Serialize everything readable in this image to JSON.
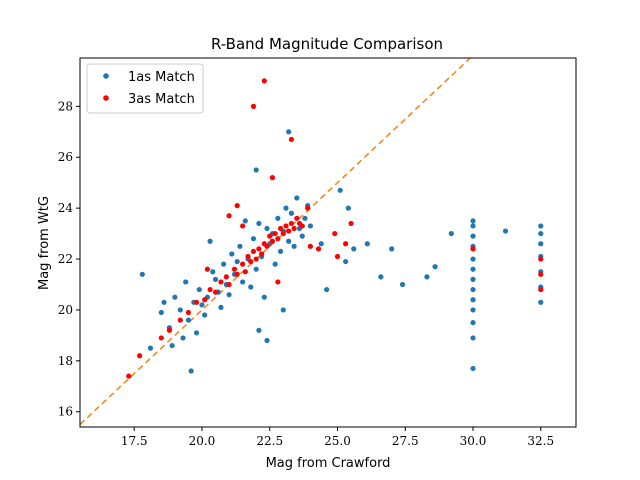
{
  "chart_data": {
    "type": "scatter",
    "title": "R-Band Magnitude Comparison",
    "xlabel": "Mag from Crawford",
    "ylabel": "Mag from WtG",
    "xlim": [
      15.5,
      33.8
    ],
    "ylim": [
      15.4,
      29.9
    ],
    "xticks": [
      "17.5",
      "20.0",
      "22.5",
      "25.0",
      "27.5",
      "30.0",
      "32.5"
    ],
    "yticks": [
      "16",
      "18",
      "20",
      "22",
      "24",
      "26",
      "28"
    ],
    "grid": false,
    "legend_position": "top-left",
    "reference_line": {
      "style": "dashed",
      "color": "#ff7f0e",
      "slope": 1,
      "intercept": 0
    },
    "series": [
      {
        "name": "1as Match",
        "color": "#1f77b4",
        "points": [
          [
            17.8,
            21.4
          ],
          [
            18.1,
            18.5
          ],
          [
            18.5,
            19.9
          ],
          [
            18.6,
            20.3
          ],
          [
            18.8,
            19.3
          ],
          [
            18.9,
            18.6
          ],
          [
            19.0,
            20.5
          ],
          [
            19.2,
            20.0
          ],
          [
            19.3,
            18.9
          ],
          [
            19.4,
            21.1
          ],
          [
            19.5,
            19.6
          ],
          [
            19.6,
            17.6
          ],
          [
            19.7,
            20.3
          ],
          [
            19.8,
            19.1
          ],
          [
            19.9,
            20.8
          ],
          [
            20.0,
            20.2
          ],
          [
            20.1,
            19.8
          ],
          [
            20.2,
            20.5
          ],
          [
            20.3,
            22.7
          ],
          [
            20.4,
            21.5
          ],
          [
            20.5,
            21.2
          ],
          [
            20.6,
            20.7
          ],
          [
            20.7,
            20.1
          ],
          [
            20.8,
            21.8
          ],
          [
            20.9,
            21.0
          ],
          [
            21.0,
            20.6
          ],
          [
            21.1,
            22.2
          ],
          [
            21.2,
            21.4
          ],
          [
            21.3,
            21.9
          ],
          [
            21.4,
            22.5
          ],
          [
            21.5,
            21.1
          ],
          [
            21.6,
            23.5
          ],
          [
            21.7,
            22.0
          ],
          [
            21.8,
            20.9
          ],
          [
            21.9,
            22.8
          ],
          [
            22.0,
            21.6
          ],
          [
            22.1,
            23.4
          ],
          [
            22.2,
            22.1
          ],
          [
            22.3,
            20.5
          ],
          [
            22.4,
            23.2
          ],
          [
            22.5,
            22.6
          ],
          [
            22.6,
            23.0
          ],
          [
            22.7,
            21.8
          ],
          [
            22.8,
            23.6
          ],
          [
            22.9,
            22.3
          ],
          [
            23.0,
            23.1
          ],
          [
            23.1,
            24.0
          ],
          [
            23.2,
            22.7
          ],
          [
            23.3,
            23.8
          ],
          [
            23.4,
            22.5
          ],
          [
            23.5,
            24.4
          ],
          [
            23.6,
            23.2
          ],
          [
            23.7,
            22.9
          ],
          [
            23.8,
            23.6
          ],
          [
            23.9,
            24.1
          ],
          [
            24.0,
            23.3
          ],
          [
            22.0,
            25.5
          ],
          [
            23.2,
            27.0
          ],
          [
            22.1,
            19.2
          ],
          [
            22.4,
            18.8
          ],
          [
            23.0,
            20.0
          ],
          [
            24.6,
            20.8
          ],
          [
            24.4,
            22.6
          ],
          [
            25.1,
            24.7
          ],
          [
            25.4,
            24.0
          ],
          [
            25.3,
            21.9
          ],
          [
            25.6,
            22.4
          ],
          [
            26.1,
            22.6
          ],
          [
            26.6,
            21.3
          ],
          [
            27.0,
            22.4
          ],
          [
            27.4,
            21.0
          ],
          [
            28.3,
            21.3
          ],
          [
            28.6,
            21.7
          ],
          [
            29.2,
            23.0
          ],
          [
            30.0,
            17.7
          ],
          [
            30.0,
            18.9
          ],
          [
            30.0,
            19.5
          ],
          [
            30.0,
            20.0
          ],
          [
            30.0,
            20.4
          ],
          [
            30.0,
            20.8
          ],
          [
            30.0,
            21.2
          ],
          [
            30.0,
            21.6
          ],
          [
            30.0,
            22.0
          ],
          [
            30.0,
            22.5
          ],
          [
            30.0,
            22.9
          ],
          [
            30.0,
            23.3
          ],
          [
            30.0,
            23.5
          ],
          [
            31.2,
            23.1
          ],
          [
            32.5,
            20.3
          ],
          [
            32.5,
            20.9
          ],
          [
            32.5,
            21.5
          ],
          [
            32.5,
            22.1
          ],
          [
            32.5,
            22.6
          ],
          [
            32.5,
            23.0
          ],
          [
            32.5,
            23.3
          ]
        ]
      },
      {
        "name": "3as Match",
        "color": "#ff0000",
        "points": [
          [
            17.3,
            17.4
          ],
          [
            17.7,
            18.2
          ],
          [
            18.5,
            18.9
          ],
          [
            18.8,
            19.2
          ],
          [
            19.2,
            19.6
          ],
          [
            19.5,
            19.9
          ],
          [
            19.8,
            20.3
          ],
          [
            20.1,
            20.4
          ],
          [
            20.3,
            20.8
          ],
          [
            20.5,
            20.7
          ],
          [
            20.7,
            21.1
          ],
          [
            20.9,
            21.3
          ],
          [
            21.0,
            21.0
          ],
          [
            21.2,
            21.6
          ],
          [
            21.3,
            21.4
          ],
          [
            21.5,
            21.8
          ],
          [
            21.6,
            21.5
          ],
          [
            21.7,
            22.1
          ],
          [
            21.8,
            21.9
          ],
          [
            21.9,
            22.3
          ],
          [
            22.0,
            22.0
          ],
          [
            22.1,
            22.4
          ],
          [
            22.2,
            22.2
          ],
          [
            22.3,
            22.6
          ],
          [
            22.4,
            22.5
          ],
          [
            22.5,
            22.9
          ],
          [
            22.6,
            22.7
          ],
          [
            22.7,
            23.0
          ],
          [
            22.8,
            22.8
          ],
          [
            22.9,
            23.2
          ],
          [
            23.0,
            23.0
          ],
          [
            23.1,
            23.3
          ],
          [
            23.2,
            23.1
          ],
          [
            23.3,
            23.4
          ],
          [
            23.4,
            23.2
          ],
          [
            23.5,
            23.6
          ],
          [
            23.6,
            23.4
          ],
          [
            23.7,
            23.3
          ],
          [
            21.9,
            28.0
          ],
          [
            22.3,
            29.0
          ],
          [
            23.3,
            26.7
          ],
          [
            22.6,
            25.2
          ],
          [
            21.5,
            23.3
          ],
          [
            21.3,
            24.1
          ],
          [
            24.0,
            22.5
          ],
          [
            24.3,
            22.4
          ],
          [
            25.0,
            22.1
          ],
          [
            25.3,
            22.6
          ],
          [
            25.5,
            23.4
          ],
          [
            24.9,
            23.0
          ],
          [
            21.0,
            23.7
          ],
          [
            22.8,
            21.1
          ],
          [
            20.2,
            21.6
          ],
          [
            23.9,
            24.0
          ],
          [
            30.0,
            22.4
          ],
          [
            32.5,
            20.8
          ],
          [
            32.5,
            21.4
          ],
          [
            32.5,
            22.0
          ]
        ]
      }
    ]
  }
}
